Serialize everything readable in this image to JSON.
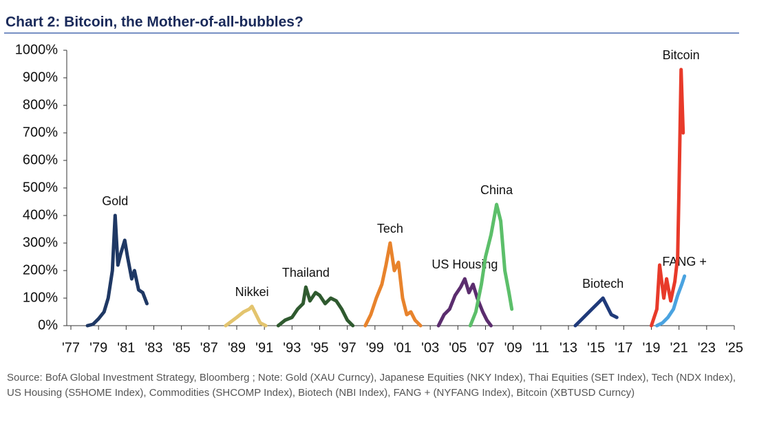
{
  "chart_data": {
    "type": "line",
    "title": "Chart 2:  Bitcoin, the Mother-of-all-bubbles?",
    "source": "Source:  BofA Global Investment Strategy, Bloomberg ; Note: Gold (XAU Curncy), Japanese Equities (NKY Index), Thai Equities (SET Index), Tech (NDX Index), US Housing (S5HOME Index), Commodities (SHCOMP Index), Biotech (NBI Index), FANG + (NYFANG Index), Bitcoin (XBTUSD Curncy)",
    "xlim": [
      1977,
      2025
    ],
    "xticks": [
      {
        "value": 1977,
        "label": "'77"
      },
      {
        "value": 1979,
        "label": "'79"
      },
      {
        "value": 1981,
        "label": "'81"
      },
      {
        "value": 1983,
        "label": "'83"
      },
      {
        "value": 1985,
        "label": "'85"
      },
      {
        "value": 1987,
        "label": "'87"
      },
      {
        "value": 1989,
        "label": "'89"
      },
      {
        "value": 1991,
        "label": "'91"
      },
      {
        "value": 1993,
        "label": "'93"
      },
      {
        "value": 1995,
        "label": "'95"
      },
      {
        "value": 1997,
        "label": "'97"
      },
      {
        "value": 1999,
        "label": "'99"
      },
      {
        "value": 2001,
        "label": "'01"
      },
      {
        "value": 2003,
        "label": "'03"
      },
      {
        "value": 2005,
        "label": "'05"
      },
      {
        "value": 2007,
        "label": "'07"
      },
      {
        "value": 2009,
        "label": "'09"
      },
      {
        "value": 2011,
        "label": "'11"
      },
      {
        "value": 2013,
        "label": "'13"
      },
      {
        "value": 2015,
        "label": "'15"
      },
      {
        "value": 2017,
        "label": "'17"
      },
      {
        "value": 2019,
        "label": "'19"
      },
      {
        "value": 2021,
        "label": "'21"
      },
      {
        "value": 2023,
        "label": "'23"
      },
      {
        "value": 2025,
        "label": "'25"
      }
    ],
    "ylim": [
      0,
      1000
    ],
    "yticks": [
      {
        "value": 0,
        "label": "0%"
      },
      {
        "value": 100,
        "label": "100%"
      },
      {
        "value": 200,
        "label": "200%"
      },
      {
        "value": 300,
        "label": "300%"
      },
      {
        "value": 400,
        "label": "400%"
      },
      {
        "value": 500,
        "label": "500%"
      },
      {
        "value": 600,
        "label": "600%"
      },
      {
        "value": 700,
        "label": "700%"
      },
      {
        "value": 800,
        "label": "800%"
      },
      {
        "value": 900,
        "label": "900%"
      },
      {
        "value": 1000,
        "label": "1000%"
      }
    ],
    "grid": false,
    "series": [
      {
        "name": "Gold",
        "color": "#1f3864",
        "x": [
          1978.2,
          1978.6,
          1979.0,
          1979.4,
          1979.7,
          1980.0,
          1980.2,
          1980.4,
          1980.6,
          1980.9,
          1981.1,
          1981.4,
          1981.6,
          1981.9,
          1982.2,
          1982.5
        ],
        "values": [
          0,
          5,
          25,
          50,
          100,
          200,
          400,
          220,
          260,
          310,
          250,
          170,
          200,
          130,
          120,
          80
        ]
      },
      {
        "name": "Nikkei",
        "color": "#e3c46e",
        "x": [
          1988.2,
          1988.6,
          1989.0,
          1989.5,
          1989.9,
          1990.1,
          1990.4,
          1990.7,
          1991.1
        ],
        "values": [
          0,
          15,
          30,
          50,
          60,
          70,
          40,
          10,
          0
        ]
      },
      {
        "name": "Thailand",
        "color": "#2f5a2f",
        "x": [
          1992.0,
          1992.5,
          1993.0,
          1993.4,
          1993.8,
          1994.0,
          1994.3,
          1994.7,
          1995.0,
          1995.4,
          1995.8,
          1996.2,
          1996.6,
          1997.0,
          1997.4
        ],
        "values": [
          0,
          20,
          30,
          60,
          80,
          140,
          90,
          120,
          110,
          80,
          100,
          90,
          60,
          20,
          0
        ]
      },
      {
        "name": "Tech",
        "color": "#e8832c",
        "x": [
          1998.3,
          1998.7,
          1999.1,
          1999.5,
          1999.8,
          2000.1,
          2000.4,
          2000.7,
          2001.0,
          2001.3,
          2001.6,
          2001.9,
          2002.3
        ],
        "values": [
          0,
          40,
          100,
          150,
          220,
          300,
          200,
          230,
          100,
          40,
          50,
          20,
          0
        ]
      },
      {
        "name": "US Housing",
        "color": "#5b2d6e",
        "x": [
          2003.6,
          2004.0,
          2004.4,
          2004.8,
          2005.2,
          2005.5,
          2005.8,
          2006.1,
          2006.4,
          2006.8,
          2007.1,
          2007.4
        ],
        "values": [
          0,
          40,
          60,
          110,
          140,
          170,
          120,
          150,
          100,
          50,
          20,
          0
        ]
      },
      {
        "name": "China",
        "color": "#5cbf6a",
        "x": [
          2005.9,
          2006.3,
          2006.7,
          2007.0,
          2007.4,
          2007.8,
          2008.1,
          2008.4,
          2008.7,
          2008.9
        ],
        "values": [
          0,
          50,
          150,
          250,
          330,
          440,
          380,
          200,
          120,
          60
        ]
      },
      {
        "name": "Biotech",
        "color": "#1f3a7a",
        "x": [
          2013.5,
          2013.9,
          2014.3,
          2014.7,
          2015.1,
          2015.5,
          2015.8,
          2016.1,
          2016.5
        ],
        "values": [
          0,
          20,
          40,
          60,
          80,
          100,
          70,
          40,
          30
        ]
      },
      {
        "name": "FANG +",
        "color": "#4aa3e0",
        "x": [
          2019.4,
          2019.8,
          2020.2,
          2020.6,
          2020.9,
          2021.2,
          2021.4
        ],
        "values": [
          0,
          10,
          30,
          60,
          110,
          150,
          180
        ]
      },
      {
        "name": "Bitcoin",
        "color": "#e83a2a",
        "x": [
          2019.0,
          2019.4,
          2019.6,
          2019.9,
          2020.1,
          2020.4,
          2020.7,
          2020.9,
          2021.0,
          2021.15,
          2021.3
        ],
        "values": [
          0,
          60,
          220,
          100,
          170,
          90,
          160,
          250,
          500,
          930,
          700
        ]
      }
    ]
  }
}
